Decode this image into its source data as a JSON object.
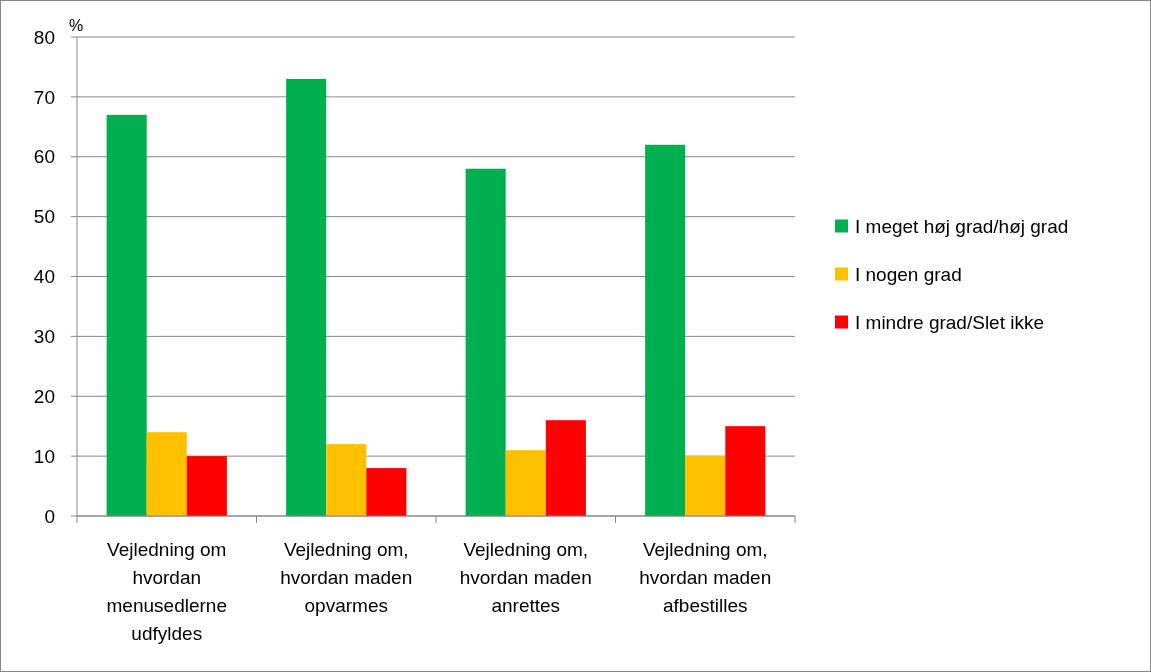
{
  "chart_data": {
    "type": "bar",
    "ylabel": "%",
    "categories": [
      "Vejledning om hvordan menusedlerne udfyldes",
      "Vejledning om, hvordan maden opvarmes",
      "Vejledning om, hvordan maden anrettes",
      "Vejledning om, hvordan maden afbestilles"
    ],
    "series": [
      {
        "name": "I meget høj grad/høj grad",
        "color": "#00b050",
        "values": [
          67,
          73,
          58,
          62
        ]
      },
      {
        "name": "I nogen grad",
        "color": "#ffc000",
        "values": [
          14,
          12,
          11,
          10
        ]
      },
      {
        "name": "I mindre grad/Slet ikke",
        "color": "#ff0000",
        "values": [
          10,
          8,
          16,
          15
        ]
      }
    ],
    "ylim": [
      0,
      80
    ],
    "yticks": [
      0,
      10,
      20,
      30,
      40,
      50,
      60,
      70,
      80
    ],
    "grid": "y",
    "legend": "right"
  }
}
